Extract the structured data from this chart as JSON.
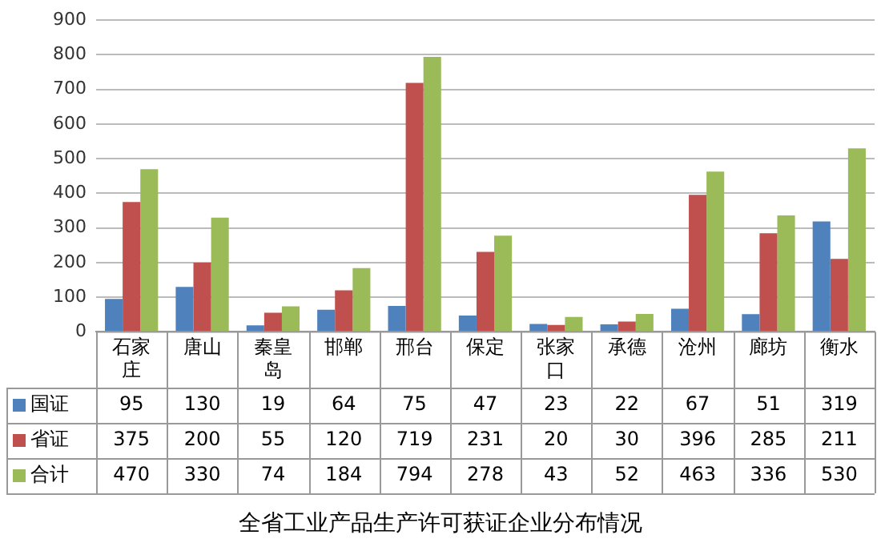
{
  "chart_data": {
    "type": "bar",
    "title": "全省工业产品生产许可获证企业分布情况",
    "categories": [
      "石家庄",
      "唐山",
      "秦皇岛",
      "邯郸",
      "邢台",
      "保定",
      "张家口",
      "承德",
      "沧州",
      "廊坊",
      "衡水"
    ],
    "series": [
      {
        "name": "国证",
        "color": "#4f81bd",
        "values": [
          95,
          130,
          19,
          64,
          75,
          47,
          23,
          22,
          67,
          51,
          319
        ]
      },
      {
        "name": "省证",
        "color": "#c0504d",
        "values": [
          375,
          200,
          55,
          120,
          719,
          231,
          20,
          30,
          396,
          285,
          211
        ]
      },
      {
        "name": "合计",
        "color": "#9bbb59",
        "values": [
          470,
          330,
          74,
          184,
          794,
          278,
          43,
          52,
          463,
          336,
          530
        ]
      }
    ],
    "ylim": [
      0,
      900
    ],
    "yticks": [
      0,
      100,
      200,
      300,
      400,
      500,
      600,
      700,
      800,
      900
    ],
    "grid": "y",
    "legend": "bottom left",
    "data_labels": true
  }
}
